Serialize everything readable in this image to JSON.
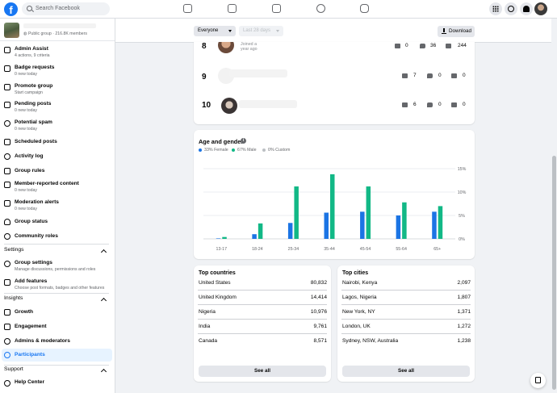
{
  "search": {
    "placeholder": "Search Facebook"
  },
  "group": {
    "meta": "Public group · 216.8K members"
  },
  "sidebar": {
    "items": [
      {
        "label": "Admin Assist",
        "sub": "4 actions, 9 criteria"
      },
      {
        "label": "Badge requests",
        "sub": "0 new today"
      },
      {
        "label": "Promote group",
        "sub": "Start campaign"
      },
      {
        "label": "Pending posts",
        "sub": "0 new today"
      },
      {
        "label": "Potential spam",
        "sub": "0 new today"
      },
      {
        "label": "Scheduled posts",
        "sub": ""
      },
      {
        "label": "Activity log",
        "sub": ""
      },
      {
        "label": "Group rules",
        "sub": ""
      },
      {
        "label": "Member-reported content",
        "sub": "0 new today"
      },
      {
        "label": "Moderation alerts",
        "sub": "0 new today"
      },
      {
        "label": "Group status",
        "sub": ""
      },
      {
        "label": "Community roles",
        "sub": ""
      }
    ],
    "settings_title": "Settings",
    "settings_items": [
      {
        "label": "Group settings",
        "sub": "Manage discussions, permissions and roles"
      },
      {
        "label": "Add features",
        "sub": "Choose post formats, badges and other features"
      }
    ],
    "insights_title": "Insights",
    "insights_items": [
      {
        "label": "Growth"
      },
      {
        "label": "Engagement"
      },
      {
        "label": "Admins & moderators"
      },
      {
        "label": "Participants"
      }
    ],
    "support_title": "Support",
    "support_items": [
      {
        "label": "Help Center"
      }
    ]
  },
  "toolbar": {
    "audience": "Everyone",
    "range": "Last 28 days",
    "download": "Download"
  },
  "contributors": [
    {
      "rank": "8",
      "sub": "Joined a year ago",
      "posts": "0",
      "comments": "36",
      "reactions": "244"
    },
    {
      "rank": "9",
      "sub": "",
      "posts": "7",
      "comments": "0",
      "reactions": "0"
    },
    {
      "rank": "10",
      "sub": "",
      "posts": "6",
      "comments": "0",
      "reactions": "0"
    }
  ],
  "chart_data": {
    "type": "bar",
    "title": "Age and gender",
    "categories": [
      "13-17",
      "18-24",
      "25-34",
      "35-44",
      "45-54",
      "55-64",
      "65+"
    ],
    "series": [
      {
        "name": "33% Female",
        "color": "#1b74e4",
        "values": [
          0.1,
          1.0,
          3.4,
          5.6,
          5.8,
          5.0,
          5.8
        ]
      },
      {
        "name": "67% Male",
        "color": "#12b886",
        "values": [
          0.4,
          3.3,
          11.2,
          13.8,
          11.2,
          7.8,
          7.0
        ]
      },
      {
        "name": "0% Custom",
        "color": "#bcc0c4",
        "values": [
          0,
          0,
          0,
          0,
          0,
          0,
          0
        ]
      }
    ],
    "yticks": [
      "0%",
      "5%",
      "10%",
      "15%"
    ],
    "ylim": [
      0,
      15
    ],
    "grid": true,
    "legend": "top-left"
  },
  "top_countries": {
    "title": "Top countries",
    "rows": [
      {
        "name": "United States",
        "value": "80,832"
      },
      {
        "name": "United Kingdom",
        "value": "14,414"
      },
      {
        "name": "Nigeria",
        "value": "10,976"
      },
      {
        "name": "India",
        "value": "9,761"
      },
      {
        "name": "Canada",
        "value": "8,571"
      }
    ],
    "see_all": "See all"
  },
  "top_cities": {
    "title": "Top cities",
    "rows": [
      {
        "name": "Nairobi, Kenya",
        "value": "2,097"
      },
      {
        "name": "Lagos, Nigeria",
        "value": "1,807"
      },
      {
        "name": "New York, NY",
        "value": "1,371"
      },
      {
        "name": "London, UK",
        "value": "1,272"
      },
      {
        "name": "Sydney, NSW, Australia",
        "value": "1,238"
      }
    ],
    "see_all": "See all"
  }
}
